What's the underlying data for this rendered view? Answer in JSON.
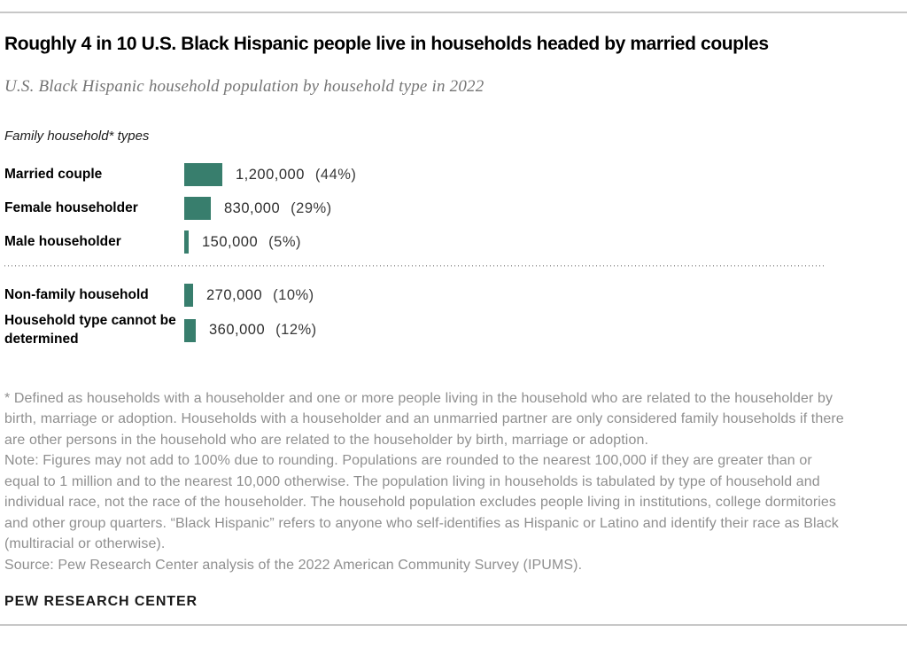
{
  "header": {
    "title": "Roughly 4 in 10 U.S. Black Hispanic people live in households headed by married couples",
    "subtitle": "U.S. Black Hispanic household population by household type in 2022"
  },
  "chart_data": {
    "type": "bar",
    "orientation": "horizontal",
    "title": "Roughly 4 in 10 U.S. Black Hispanic people live in households headed by married couples",
    "subtitle": "U.S. Black Hispanic household population by household type in 2022",
    "group_label": "Family household* types",
    "categories": [
      "Married couple",
      "Female householder",
      "Male householder",
      "Non-family household",
      "Household type cannot be determined"
    ],
    "values": [
      1200000,
      830000,
      150000,
      270000,
      360000
    ],
    "percents": [
      44,
      29,
      5,
      10,
      12
    ],
    "xlim": [
      0,
      1200000
    ],
    "bar_color": "#387e6d",
    "legend": "none",
    "grid": false,
    "divider_after_index": 2,
    "rows": [
      {
        "label": "Married couple",
        "value": 1200000,
        "value_label": "1,200,000",
        "pct_label": "(44%)",
        "group": "family"
      },
      {
        "label": "Female householder",
        "value": 830000,
        "value_label": "830,000",
        "pct_label": "(29%)",
        "group": "family"
      },
      {
        "label": "Male householder",
        "value": 150000,
        "value_label": "150,000",
        "pct_label": "(5%)",
        "group": "family"
      },
      {
        "label": "Non-family household",
        "value": 270000,
        "value_label": "270,000",
        "pct_label": "(10%)",
        "group": "non-family"
      },
      {
        "label": "Household type cannot be determined",
        "value": 360000,
        "value_label": "360,000",
        "pct_label": "(12%)",
        "group": "undetermined"
      }
    ]
  },
  "footnotes": {
    "definition": "* Defined as households with a householder and one or more people living in the household who are related to the householder by birth, marriage or adoption. Households with a householder and an unmarried partner are only considered family households if there are other persons in the household who are related to the householder by birth, marriage or adoption.",
    "note": "Note: Figures may not add to 100% due to rounding. Populations are rounded to the nearest 100,000 if they are greater than or equal to 1 million and to the nearest 10,000 otherwise. The population living in households is tabulated by type of household and individual race, not the race of the householder. The household population excludes people living in institutions, college dormitories and other group quarters. “Black Hispanic” refers to anyone who self-identifies as Hispanic or Latino and identify their race as Black (multiracial or otherwise).",
    "source": "Source: Pew Research Center analysis of the 2022 American Community Survey (IPUMS)."
  },
  "footer": {
    "brand": "PEW RESEARCH CENTER"
  }
}
